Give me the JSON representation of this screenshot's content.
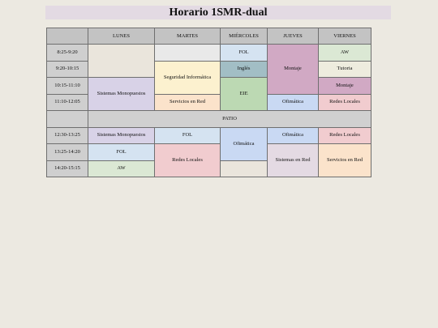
{
  "title": "Horario 1SMR-dual",
  "headers": [
    "LUNES",
    "MARTES",
    "MIÉRCOLES",
    "JUEVES",
    "VIERNES"
  ],
  "times": [
    "8:25-9:20",
    "9:20-10:15",
    "10:15-11:10",
    "11:10-12:05",
    "12:30-13:25",
    "13:25-14:20",
    "14:20-15:15"
  ],
  "patio": "PATIO",
  "cells": {
    "r1_mie": "FOL",
    "r1_jue": "Montaje",
    "r1_vie": "AW",
    "r2_mar": "Seguridad Informática",
    "r2_mie": "Inglés",
    "r2_vie": "Tutoria",
    "r3_lun": "Sistemas Monopuestos",
    "r3_mie": "EIE",
    "r3_vie": "Montaje",
    "r4_mar": "Servicios en Red",
    "r4_jue": "Ofimática",
    "r4_vie": "Redes Locales",
    "r5_lun": "Sistemas Monopuestos",
    "r5_mar": "FOL",
    "r5_mie": "Ofimática",
    "r5_jue": "Ofimática",
    "r5_vie": "Redes Locales",
    "r6_lun": "FOL",
    "r6_mar": "Redes Locales",
    "r6_jue": "Sistemas en Red",
    "r6_vie": "Servicios en Red",
    "r7_lun": "AW"
  },
  "colors": {
    "title_bg": "#e3dae3",
    "header_bg": "#c3c3c3",
    "fol": "#d5e3f1",
    "montaje": "#d1a9c4",
    "aw": "#dbe8d4",
    "ingles": "#a2bec5",
    "eie": "#bcd9b3",
    "ofimatica": "#c9d9f3",
    "redes_locales": "#f1cccf",
    "servicios_red": "#fbe3cb",
    "seguridad": "#fcf1cf",
    "sistemas_monopuestos": "#d8d2e7"
  }
}
